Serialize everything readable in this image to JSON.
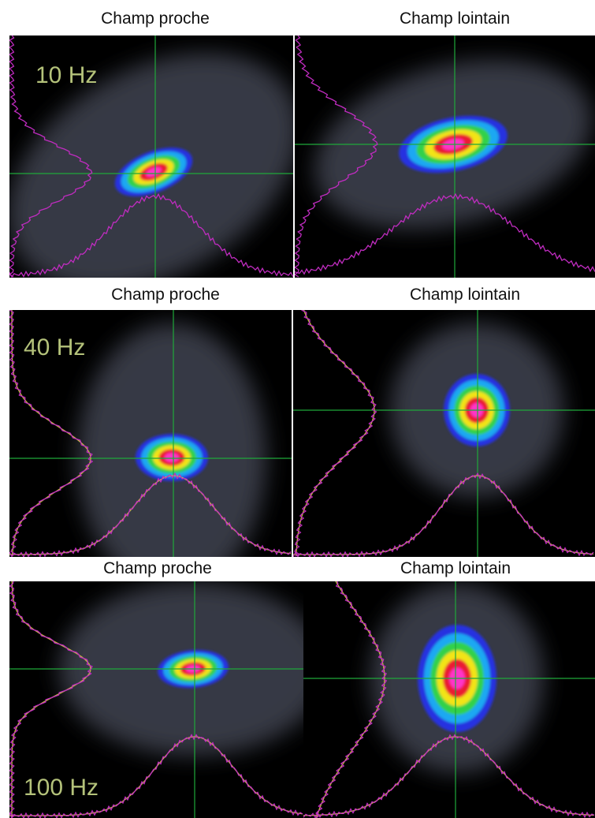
{
  "rows": [
    {
      "label": "10 Hz",
      "panels": [
        {
          "title": "Champ proche"
        },
        {
          "title": "Champ lointain"
        }
      ]
    },
    {
      "label": "40 Hz",
      "panels": [
        {
          "title": "Champ proche"
        },
        {
          "title": "Champ lointain"
        }
      ]
    },
    {
      "label": "100 Hz",
      "panels": [
        {
          "title": "Champ proche"
        },
        {
          "title": "Champ lointain"
        }
      ]
    }
  ]
}
